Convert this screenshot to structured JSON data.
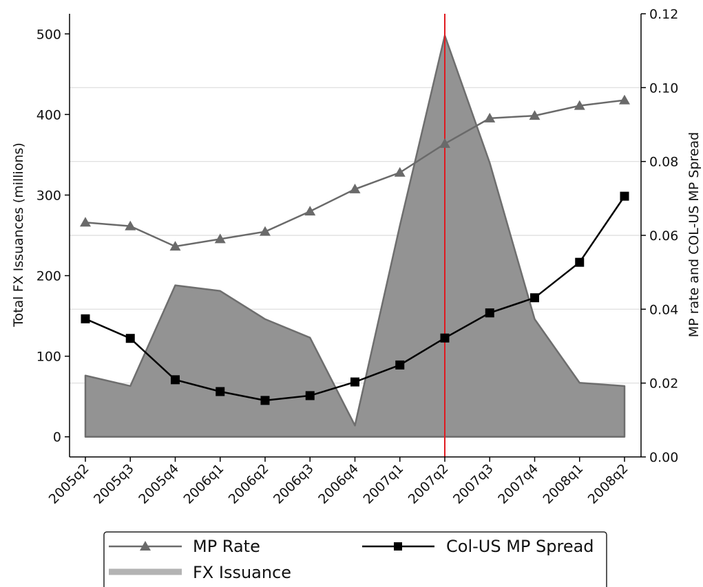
{
  "chart_data": {
    "type": "line",
    "categories": [
      "2005q2",
      "2005q3",
      "2005q4",
      "2006q1",
      "2006q2",
      "2006q3",
      "2006q4",
      "2007q1",
      "2007q2",
      "2007q3",
      "2007q4",
      "2008q1",
      "2008q2"
    ],
    "ylabel_left": "Total FX Issuances (millions)",
    "ylabel_right": "MP rate and COL-US MP Spread",
    "ylim_left": [
      -25,
      525
    ],
    "yticks_left": [
      "0",
      "100",
      "200",
      "300",
      "400",
      "500"
    ],
    "ylim_right": [
      0.0,
      0.12
    ],
    "yticks_right": [
      "0.00",
      "0.02",
      "0.04",
      "0.06",
      "0.08",
      "0.10",
      "0.12"
    ],
    "grid": "horizontal, right axis",
    "vline_at": "2007q2",
    "legend_position": "below",
    "series": [
      {
        "name": "FX Issuance",
        "axis": "left",
        "kind": "area",
        "values": [
          76,
          63,
          188,
          181,
          146,
          123,
          14,
          262,
          498,
          340,
          146,
          67,
          63
        ]
      },
      {
        "name": "MP Rate",
        "axis": "right",
        "kind": "line",
        "marker": "triangle",
        "values": [
          0.0635,
          0.0625,
          0.057,
          0.059,
          0.061,
          0.0665,
          0.0725,
          0.077,
          0.0848,
          0.0917,
          0.0924,
          0.0951,
          0.0966
        ]
      },
      {
        "name": "Col-US MP Spread",
        "axis": "right",
        "kind": "line",
        "marker": "square",
        "values": [
          0.0374,
          0.0321,
          0.0209,
          0.0177,
          0.0153,
          0.0166,
          0.0203,
          0.0249,
          0.0322,
          0.039,
          0.0431,
          0.0527,
          0.0706
        ]
      }
    ],
    "colors": {
      "area_fill": "#939393",
      "area_edge": "#6e6e6e",
      "mp_rate": "#6a6a6a",
      "spread": "#000000",
      "vline": "#e0191f",
      "grid": "#dcdcdc",
      "legend_fx": "#b3b3b3"
    }
  }
}
